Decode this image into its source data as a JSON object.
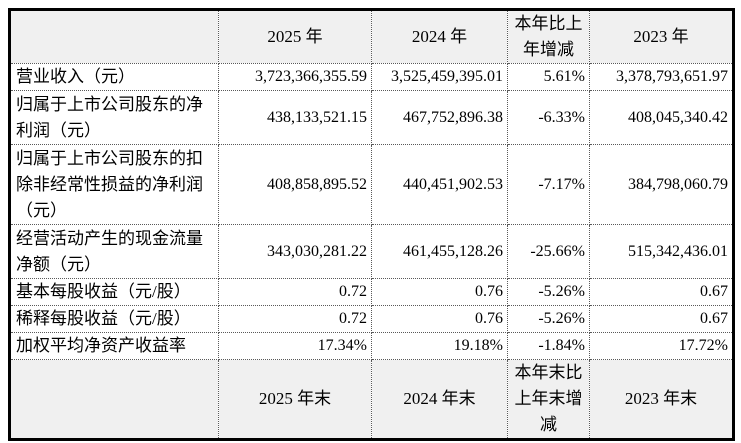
{
  "table": {
    "title_semantic": "key-accounting-data-summary",
    "style": {
      "header_bg": "#f0f0f0",
      "row_bg": "#ffffff",
      "outer_border": "#000000",
      "inner_border": "#595959",
      "text_color": "#000000"
    },
    "top_header": {
      "blank": "",
      "y2025": "2025 年",
      "y2024": "2024 年",
      "change": "本年比上年增减",
      "y2023": "2023 年"
    },
    "rows": [
      {
        "label": "营业收入（元）",
        "y2025": "3,723,366,355.59",
        "y2024": "3,525,459,395.01",
        "change": "5.61%",
        "y2023": "3,378,793,651.97"
      },
      {
        "label": "归属于上市公司股东的净利润（元）",
        "y2025": "438,133,521.15",
        "y2024": "467,752,896.38",
        "change": "-6.33%",
        "y2023": "408,045,340.42"
      },
      {
        "label": "归属于上市公司股东的扣除非经常性损益的净利润（元）",
        "y2025": "408,858,895.52",
        "y2024": "440,451,902.53",
        "change": "-7.17%",
        "y2023": "384,798,060.79"
      },
      {
        "label": "经营活动产生的现金流量净额（元）",
        "y2025": "343,030,281.22",
        "y2024": "461,455,128.26",
        "change": "-25.66%",
        "y2023": "515,342,436.01"
      },
      {
        "label": "基本每股收益（元/股）",
        "y2025": "0.72",
        "y2024": "0.76",
        "change": "-5.26%",
        "y2023": "0.67"
      },
      {
        "label": "稀释每股收益（元/股）",
        "y2025": "0.72",
        "y2024": "0.76",
        "change": "-5.26%",
        "y2023": "0.67"
      },
      {
        "label": "加权平均净资产收益率",
        "y2025": "17.34%",
        "y2024": "19.18%",
        "change": "-1.84%",
        "y2023": "17.72%"
      }
    ],
    "bottom_header": {
      "blank": "",
      "y2025": "2025 年末",
      "y2024": "2024 年末",
      "change": "本年末比上年末增减",
      "y2023": "2023 年末"
    }
  }
}
